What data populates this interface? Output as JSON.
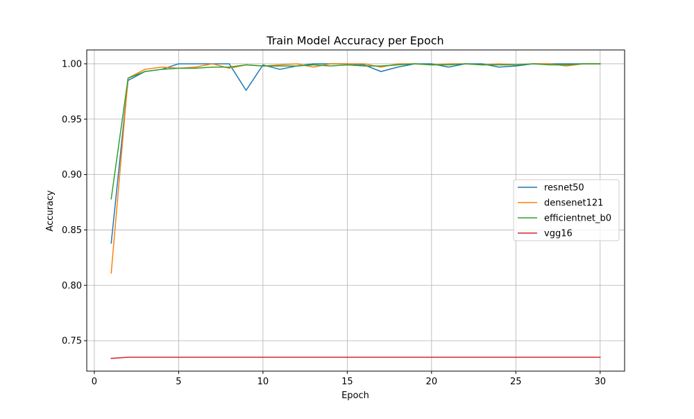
{
  "chart_data": {
    "type": "line",
    "title": "Train Model Accuracy per Epoch",
    "xlabel": "Epoch",
    "ylabel": "Accuracy",
    "xlim": [
      -0.45,
      31.45
    ],
    "ylim": [
      0.7225,
      1.0125
    ],
    "xticks": [
      0,
      5,
      10,
      15,
      20,
      25,
      30
    ],
    "yticks": [
      0.75,
      0.8,
      0.85,
      0.9,
      0.95,
      1.0
    ],
    "xtick_labels": [
      "0",
      "5",
      "10",
      "15",
      "20",
      "25",
      "30"
    ],
    "ytick_labels": [
      "0.75",
      "0.80",
      "0.85",
      "0.90",
      "0.95",
      "1.00"
    ],
    "grid": true,
    "legend_position": "center-right",
    "x": [
      1,
      2,
      3,
      4,
      5,
      6,
      7,
      8,
      9,
      10,
      11,
      12,
      13,
      14,
      15,
      16,
      17,
      18,
      19,
      20,
      21,
      22,
      23,
      24,
      25,
      26,
      27,
      28,
      29,
      30
    ],
    "series": [
      {
        "name": "resnet50",
        "color": "#1f77b4",
        "values": [
          0.838,
          0.985,
          0.993,
          0.995,
          1.0,
          1.0,
          1.0,
          1.0,
          0.976,
          0.999,
          0.995,
          0.998,
          1.0,
          1.0,
          1.0,
          0.999,
          0.993,
          0.997,
          1.0,
          1.0,
          0.997,
          1.0,
          1.0,
          0.997,
          0.998,
          1.0,
          1.0,
          1.0,
          1.0,
          1.0
        ]
      },
      {
        "name": "densenet121",
        "color": "#ff7f0e",
        "values": [
          0.811,
          0.987,
          0.995,
          0.997,
          0.996,
          0.997,
          1.0,
          0.996,
          0.999,
          0.998,
          0.999,
          1.0,
          0.997,
          1.0,
          1.0,
          1.0,
          0.997,
          1.0,
          1.0,
          0.999,
          1.0,
          1.0,
          0.999,
          1.0,
          0.999,
          1.0,
          1.0,
          0.998,
          1.0,
          1.0
        ]
      },
      {
        "name": "efficientnet_b0",
        "color": "#2ca02c",
        "values": [
          0.878,
          0.987,
          0.993,
          0.995,
          0.996,
          0.996,
          0.997,
          0.997,
          0.999,
          0.998,
          0.998,
          0.998,
          0.999,
          0.998,
          0.999,
          0.998,
          0.998,
          0.999,
          1.0,
          0.999,
          0.999,
          1.0,
          0.999,
          0.999,
          0.999,
          1.0,
          0.999,
          0.999,
          1.0,
          1.0
        ]
      },
      {
        "name": "vgg16",
        "color": "#d62728",
        "values": [
          0.734,
          0.735,
          0.735,
          0.735,
          0.735,
          0.735,
          0.735,
          0.735,
          0.735,
          0.735,
          0.735,
          0.735,
          0.735,
          0.735,
          0.735,
          0.735,
          0.735,
          0.735,
          0.735,
          0.735,
          0.735,
          0.735,
          0.735,
          0.735,
          0.735,
          0.735,
          0.735,
          0.735,
          0.735,
          0.735
        ]
      }
    ]
  }
}
